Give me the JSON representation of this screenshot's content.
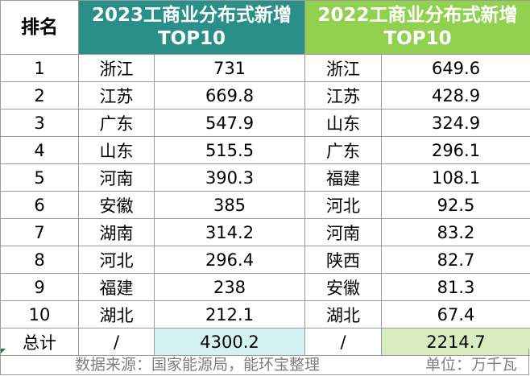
{
  "header": {
    "rank_label": "排名",
    "title_2023_line1": "2023工商业分布式新增",
    "title_2023_line2": "TOP10",
    "title_2022_line1": "2022工商业分布式新增",
    "title_2022_line2": "TOP10"
  },
  "colors": {
    "header_2023": "#2a8f86",
    "header_2022": "#92d050",
    "total_2023": "#d5f2f2",
    "total_2022": "#d7edc0"
  },
  "rows": [
    {
      "rank": "1",
      "prov_2023": "浙江",
      "val_2023": "731",
      "prov_2022": "浙江",
      "val_2022": "649.6"
    },
    {
      "rank": "2",
      "prov_2023": "江苏",
      "val_2023": "669.8",
      "prov_2022": "江苏",
      "val_2022": "428.9"
    },
    {
      "rank": "3",
      "prov_2023": "广东",
      "val_2023": "547.9",
      "prov_2022": "山东",
      "val_2022": "324.9"
    },
    {
      "rank": "4",
      "prov_2023": "山东",
      "val_2023": "515.5",
      "prov_2022": "广东",
      "val_2022": "296.1"
    },
    {
      "rank": "5",
      "prov_2023": "河南",
      "val_2023": "390.3",
      "prov_2022": "福建",
      "val_2022": "108.1"
    },
    {
      "rank": "6",
      "prov_2023": "安徽",
      "val_2023": "385",
      "prov_2022": "河北",
      "val_2022": "92.5"
    },
    {
      "rank": "7",
      "prov_2023": "湖南",
      "val_2023": "314.2",
      "prov_2022": "河南",
      "val_2022": "83.2"
    },
    {
      "rank": "8",
      "prov_2023": "河北",
      "val_2023": "296.4",
      "prov_2022": "陕西",
      "val_2022": "82.7"
    },
    {
      "rank": "9",
      "prov_2023": "福建",
      "val_2023": "238",
      "prov_2022": "安徽",
      "val_2022": "81.3"
    },
    {
      "rank": "10",
      "prov_2023": "湖北",
      "val_2023": "212.1",
      "prov_2022": "湖北",
      "val_2022": "67.4"
    }
  ],
  "total": {
    "label": "总计",
    "prov_2023": "/",
    "val_2023": "4300.2",
    "prov_2022": "/",
    "val_2022": "2214.7"
  },
  "footer": {
    "source": "数据来源：国家能源局，能环宝整理",
    "unit": "单位：万千瓦"
  }
}
